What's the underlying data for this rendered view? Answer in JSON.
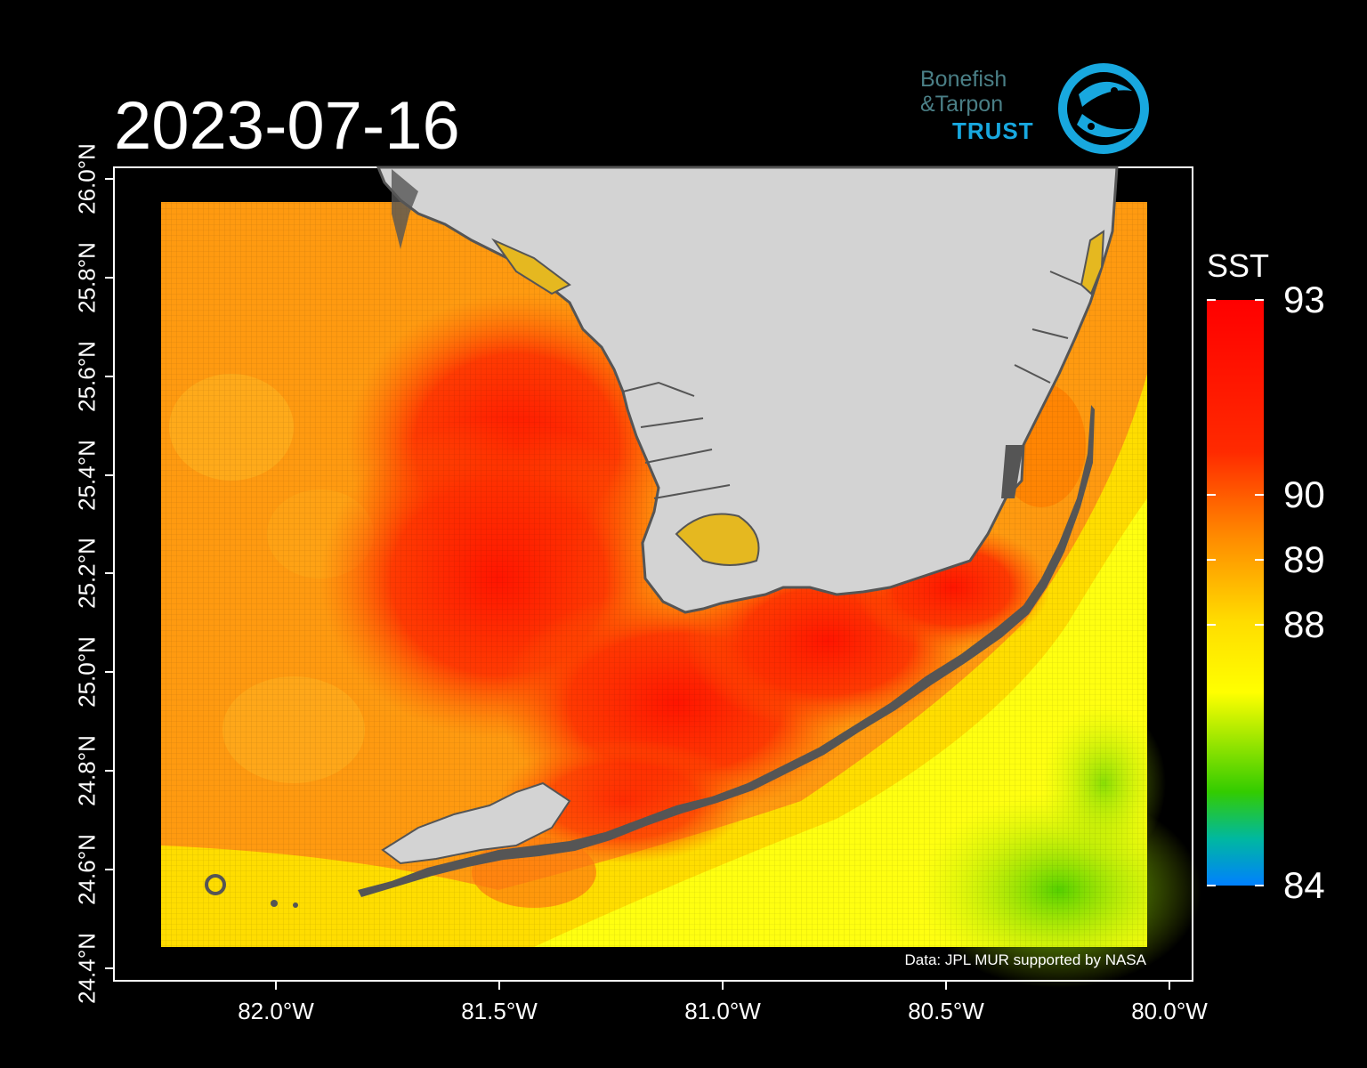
{
  "title": "2023-07-16",
  "logo": {
    "line1": "Bonefish",
    "line2": "&Tarpon",
    "line3": "TRUST"
  },
  "axes": {
    "y_ticks": [
      "24.4°N",
      "24.6°N",
      "24.8°N",
      "25.0°N",
      "25.2°N",
      "25.4°N",
      "25.6°N",
      "25.8°N",
      "26.0°N"
    ],
    "x_ticks": [
      "82.0°W",
      "81.5°W",
      "81.0°W",
      "80.5°W",
      "80.0°W"
    ]
  },
  "legend": {
    "title": "SST",
    "labels": [
      "93",
      "90",
      "89",
      "88",
      "84"
    ]
  },
  "credit": "Data: JPL MUR supported by NASA",
  "colors": {
    "land": "#d3d3d3",
    "coast": "#555555",
    "warm": "#ff2a00",
    "hot": "#ff0000",
    "mid": "#ff9a00",
    "cool": "#ffff00",
    "cold": "#33cc00",
    "coldest": "#0080ff"
  }
}
